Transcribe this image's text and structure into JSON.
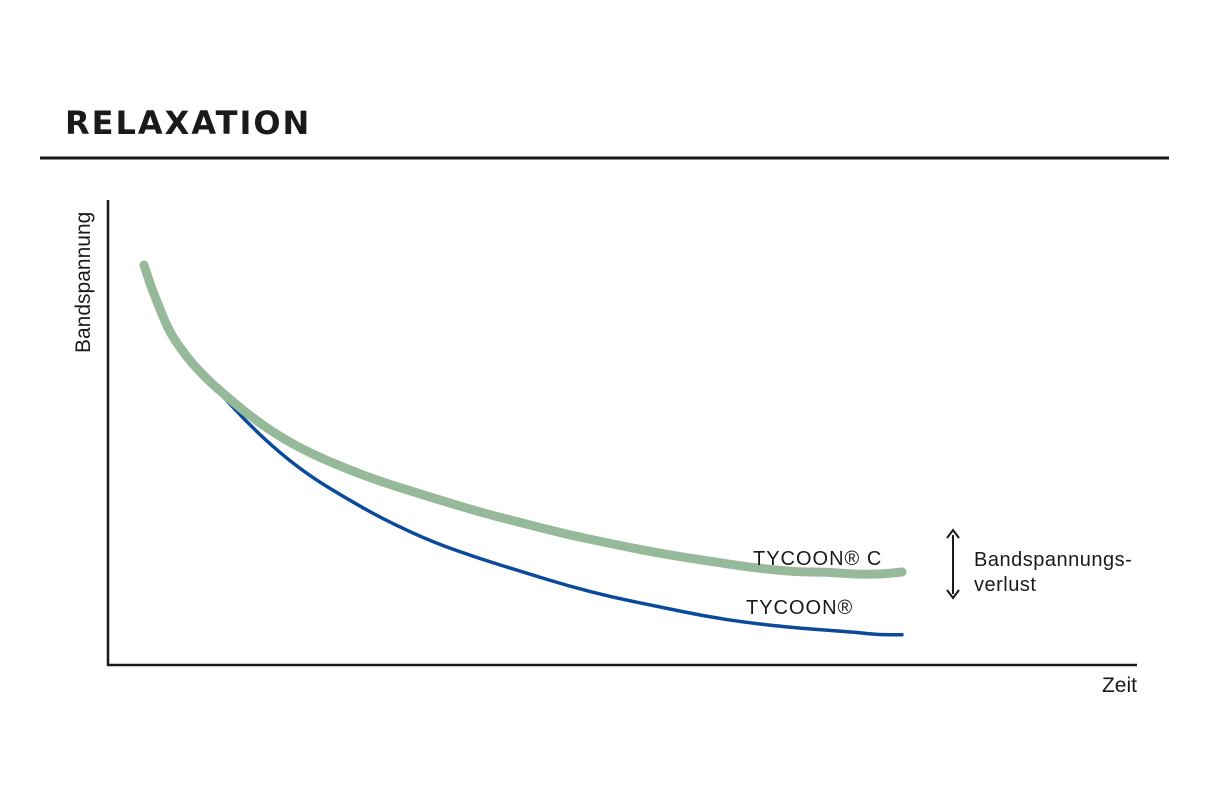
{
  "colors": {
    "text": "#1a1a1a",
    "axis": "#1a1a1a",
    "series_c": "#96b99a",
    "series_base": "#0b4a9b"
  },
  "chart_data": {
    "type": "line",
    "title": "RELAXATION",
    "xlabel": "Zeit",
    "ylabel": "Bandspannung",
    "xlim": [
      0,
      100
    ],
    "ylim": [
      0,
      100
    ],
    "grid": false,
    "axis_ticks": false,
    "series": [
      {
        "name": "TYCOON® C",
        "color": "#96b99a",
        "x": [
          0,
          1,
          2,
          3,
          4,
          6,
          8,
          10,
          14,
          18,
          22,
          27,
          32,
          38,
          44,
          50,
          56,
          62,
          68,
          74,
          80,
          86,
          90,
          94,
          97,
          100
        ],
        "y": [
          86,
          81,
          77,
          73,
          70,
          65.5,
          62,
          59,
          53.5,
          49,
          45.5,
          42,
          39,
          36,
          33,
          30.5,
          28,
          26,
          24,
          22.5,
          21,
          20,
          20,
          19.5,
          19.5,
          20
        ]
      },
      {
        "name": "TYCOON®",
        "color": "#0b4a9b",
        "x": [
          0,
          1,
          2,
          3,
          4,
          6,
          8,
          10,
          14,
          18,
          22,
          27,
          32,
          38,
          44,
          50,
          56,
          62,
          68,
          74,
          80,
          86,
          90,
          94,
          97,
          100
        ],
        "y": [
          86,
          81,
          77,
          73,
          70,
          65.5,
          62,
          58.5,
          51.5,
          45.5,
          40.5,
          35.5,
          31,
          26.5,
          23,
          20,
          17,
          14.5,
          12.5,
          10.5,
          9,
          8,
          7.5,
          7,
          6.5,
          6.5
        ]
      }
    ],
    "annotations": {
      "loss_line1": "Bandspannungs-",
      "loss_line2": "verlust"
    }
  }
}
